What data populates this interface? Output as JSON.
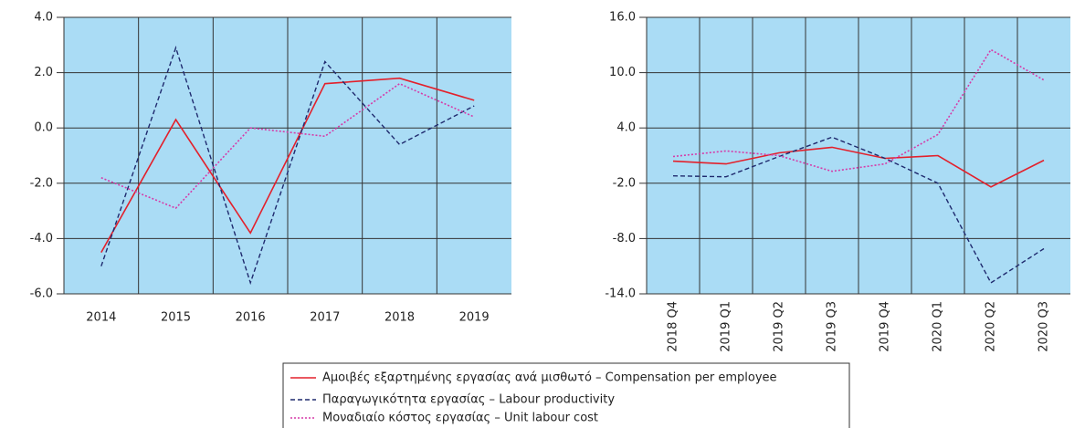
{
  "chart_data": [
    {
      "type": "line",
      "categories": [
        "2014",
        "2015",
        "2016",
        "2017",
        "2018",
        "2019"
      ],
      "series": [
        {
          "name": "Αμοιβές εξαρτημένης εργασίας ανά μισθωτό – Compensation per employee",
          "color": "#e3202b",
          "values": [
            -4.5,
            0.3,
            -3.8,
            1.6,
            1.8,
            1.0
          ]
        },
        {
          "name": "Παραγωγικότητα εργασίας – Labour productivity",
          "color": "#1f2a6e",
          "values": [
            -5.0,
            2.9,
            -5.6,
            2.4,
            -0.6,
            0.8
          ]
        },
        {
          "name": "Μοναδιαίο κόστος εργασίας – Unit labour cost",
          "color": "#d63aa8",
          "values": [
            -1.8,
            -2.9,
            0.0,
            -0.3,
            1.6,
            0.4
          ]
        }
      ],
      "ylim": [
        -6,
        4
      ],
      "yticks": [
        {
          "value": -6,
          "label": "-6.0"
        },
        {
          "value": -4,
          "label": "-4.0"
        },
        {
          "value": -2,
          "label": "-2.0"
        },
        {
          "value": 0,
          "label": "0.0"
        },
        {
          "value": 2,
          "label": "2.0"
        },
        {
          "value": 4,
          "label": "4.0"
        }
      ],
      "grid": true
    },
    {
      "type": "line",
      "categories": [
        "2018 Q4",
        "2019 Q1",
        "2019 Q2",
        "2019 Q3",
        "2019 Q4",
        "2020 Q1",
        "2020 Q2",
        "2020 Q3"
      ],
      "series": [
        {
          "color": "#e3202b",
          "values": [
            0.4,
            0.1,
            1.3,
            1.9,
            0.7,
            1.0,
            -2.4,
            0.5
          ]
        },
        {
          "color": "#1f2a6e",
          "values": [
            -1.2,
            -1.3,
            0.9,
            3.0,
            0.7,
            -2.0,
            -12.8,
            -9.1
          ]
        },
        {
          "color": "#d63aa8",
          "values": [
            0.9,
            1.5,
            1.0,
            -0.7,
            0.1,
            3.3,
            12.5,
            9.2
          ]
        }
      ],
      "ylim": [
        -14,
        16
      ],
      "yticks": [
        {
          "value": -14,
          "label": "-14.0"
        },
        {
          "value": -8,
          "label": "-8.0"
        },
        {
          "value": -2,
          "label": "-2.0"
        },
        {
          "value": 4,
          "label": "4.0"
        },
        {
          "value": 10,
          "label": "10.0"
        },
        {
          "value": 16,
          "label": "16.0"
        }
      ],
      "grid": true
    }
  ]
}
